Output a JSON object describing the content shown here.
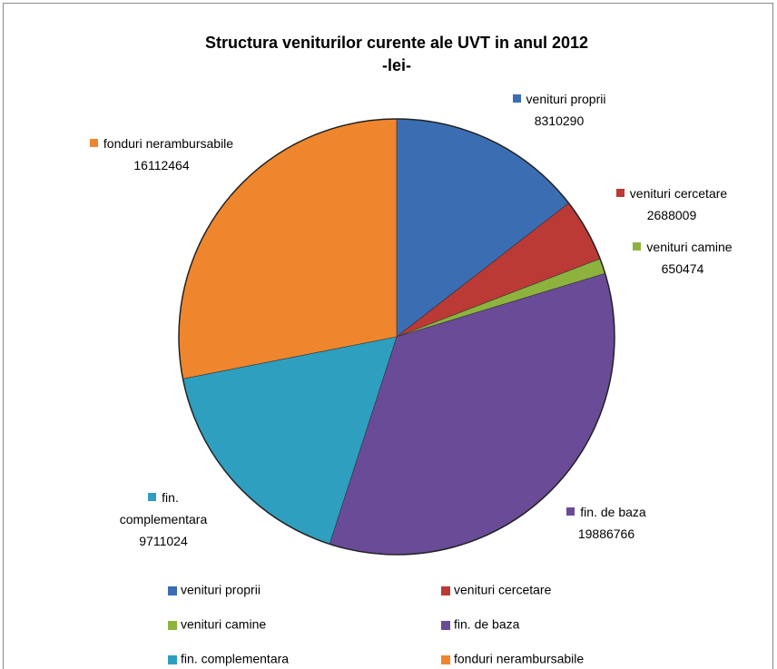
{
  "chart_data": {
    "type": "pie",
    "title": "Structura veniturilor curente ale UVT in anul 2012",
    "subtitle": "-lei-",
    "categories": [
      "venituri proprii",
      "venituri cercetare",
      "venituri camine",
      "fin. de baza",
      "fin. complementara",
      "fonduri nerambursabile"
    ],
    "values": [
      8310290,
      2688009,
      650474,
      19886766,
      9711024,
      16112464
    ],
    "colors": [
      "#3b6db3",
      "#bc3a35",
      "#8db33e",
      "#6a4b98",
      "#2e9fbf",
      "#ef862d"
    ],
    "legend": "bottom"
  }
}
